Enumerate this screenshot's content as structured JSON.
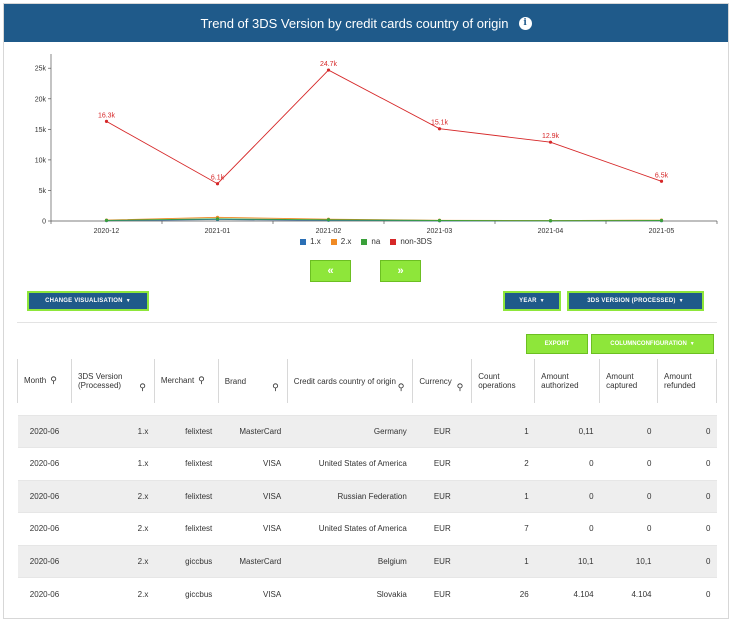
{
  "header": {
    "title": "Trend of 3DS Version by credit cards country of origin",
    "info_icon": "info-icon"
  },
  "chart_data": {
    "type": "line",
    "x": [
      "2020-12",
      "2021-01",
      "2021-02",
      "2021-03",
      "2021-04",
      "2021-05"
    ],
    "yticks": [
      "0",
      "5k",
      "10k",
      "15k",
      "20k",
      "25k"
    ],
    "ylim": [
      0,
      27000
    ],
    "series": [
      {
        "name": "1.x",
        "color": "#2a6fb5",
        "values": [
          60,
          250,
          120,
          40,
          30,
          50
        ],
        "labels": [
          "",
          "",
          "",
          "",
          "",
          ""
        ]
      },
      {
        "name": "2.x",
        "color": "#f08a24",
        "values": [
          150,
          600,
          300,
          120,
          70,
          140
        ],
        "labels": [
          "",
          "",
          "",
          "",
          "",
          ""
        ]
      },
      {
        "name": "na",
        "color": "#3aa03a",
        "values": [
          100,
          350,
          200,
          80,
          40,
          80
        ],
        "labels": [
          "",
          "",
          "",
          "",
          "",
          ""
        ]
      },
      {
        "name": "non-3DS",
        "color": "#d62728",
        "values": [
          16300,
          6100,
          24700,
          15100,
          12900,
          6500
        ],
        "labels": [
          "16.3k",
          "6.1k",
          "24.7k",
          "15.1k",
          "12.9k",
          "6.5k"
        ]
      }
    ]
  },
  "nav": {
    "prev_label": "«",
    "next_label": "»"
  },
  "buttons": {
    "change_visualisation": "CHANGE VISUALISATION",
    "year": "YEAR",
    "three_ds_version": "3DS VERSION (PROCESSED)",
    "export": "EXPORT",
    "column_configuration": "COLUMNCONFIGURATION"
  },
  "table": {
    "headers": [
      "Month",
      "3DS Version (Processed)",
      "Merchant",
      "Brand",
      "Credit cards country of origin",
      "Currency",
      "Count operations",
      "Amount authorized",
      "Amount captured",
      "Amount refunded"
    ],
    "rows": [
      [
        "2020-06",
        "1.x",
        "felixtest",
        "MasterCard",
        "Germany",
        "EUR",
        "1",
        "0,11",
        "0",
        "0"
      ],
      [
        "2020-06",
        "1.x",
        "felixtest",
        "VISA",
        "United States of America",
        "EUR",
        "2",
        "0",
        "0",
        "0"
      ],
      [
        "2020-06",
        "2.x",
        "felixtest",
        "VISA",
        "Russian Federation",
        "EUR",
        "1",
        "0",
        "0",
        "0"
      ],
      [
        "2020-06",
        "2.x",
        "felixtest",
        "VISA",
        "United States of America",
        "EUR",
        "7",
        "0",
        "0",
        "0"
      ],
      [
        "2020-06",
        "2.x",
        "giccbus",
        "MasterCard",
        "Belgium",
        "EUR",
        "1",
        "10,1",
        "10,1",
        "0"
      ],
      [
        "2020-06",
        "2.x",
        "giccbus",
        "VISA",
        "Slovakia",
        "EUR",
        "26",
        "4.104",
        "4.104",
        "0"
      ]
    ]
  }
}
